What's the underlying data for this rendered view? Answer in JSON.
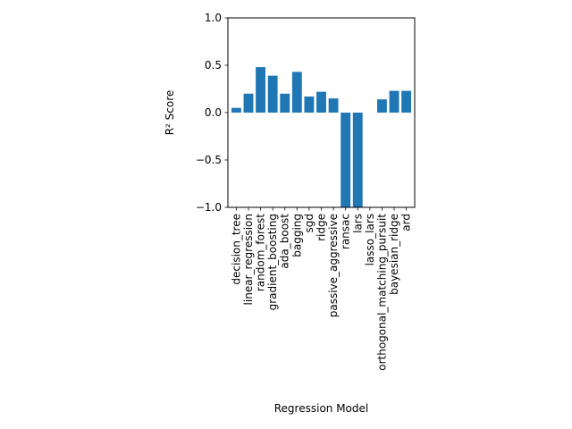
{
  "chart_data": {
    "type": "bar",
    "xlabel": "Regression Model",
    "ylabel": "R² Score",
    "ylim": [
      -1.0,
      1.0
    ],
    "yticks": [
      -1.0,
      -0.5,
      0.0,
      0.5,
      1.0
    ],
    "ytick_labels": [
      "−1.0",
      "−0.5",
      "0.0",
      "0.5",
      "1.0"
    ],
    "grid": false,
    "bar_color": "#1f77b4",
    "categories": [
      "decision_tree",
      "linear_regression",
      "random_forest",
      "gradient_boosting",
      "ada_boost",
      "bagging",
      "sgd",
      "ridge",
      "passive_aggressive",
      "ransac",
      "lars",
      "lasso_lars",
      "orthogonal_matching_pursuit",
      "bayesian_ridge",
      "ard"
    ],
    "values": [
      0.05,
      0.2,
      0.48,
      0.39,
      0.2,
      0.43,
      0.17,
      0.22,
      0.15,
      -1.0,
      -1.0,
      0.0,
      0.14,
      0.23,
      0.23
    ]
  }
}
